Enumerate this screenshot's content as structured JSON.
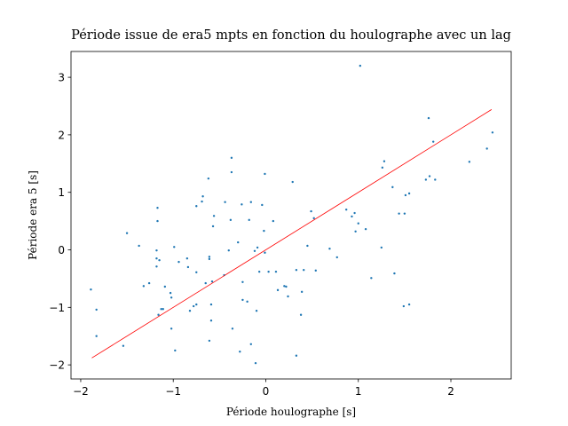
{
  "chart_data": {
    "type": "scatter",
    "title": "Période issue de era5 mpts en fonction du houlographe avec un lag",
    "xlabel": "Période houlographe [s]",
    "ylabel": "Période era 5 [s]",
    "xlim": [
      -2.105,
      2.652
    ],
    "ylim": [
      -2.245,
      3.449
    ],
    "xticks": [
      {
        "value": -2,
        "label": "−2"
      },
      {
        "value": -1,
        "label": "−1"
      },
      0,
      1,
      2
    ],
    "yticks": [
      {
        "value": -2,
        "label": "−2"
      },
      {
        "value": -1,
        "label": "−1"
      },
      0,
      1,
      2,
      3
    ],
    "grid": false,
    "series": [
      {
        "color": "#1f77b4",
        "x": [
          -1.89,
          -1.83,
          -1.83,
          -1.54,
          -1.5,
          -1.37,
          -1.32,
          -1.26,
          -1.18,
          -1.18,
          -1.18,
          -1.17,
          -1.17,
          -1.15,
          -1.16,
          -1.13,
          -1.11,
          -1.09,
          -1.03,
          -1.02,
          -1.02,
          -0.99,
          -0.98,
          -0.94,
          -0.85,
          -0.84,
          -0.82,
          -0.78,
          -0.75,
          -0.75,
          -0.75,
          -0.69,
          -0.68,
          -0.65,
          -0.62,
          -0.61,
          -0.61,
          -0.61,
          -0.59,
          -0.59,
          -0.57,
          -0.56,
          -0.58,
          -0.45,
          -0.44,
          -0.4,
          -0.38,
          -0.37,
          -0.37,
          -0.36,
          -0.3,
          -0.28,
          -0.26,
          -0.25,
          -0.25,
          -0.2,
          -0.18,
          -0.16,
          -0.16,
          -0.11,
          -0.1,
          -0.12,
          -0.09,
          -0.07,
          -0.04,
          -0.02,
          -0.01,
          -0.01,
          0.03,
          0.08,
          0.11,
          0.13,
          0.2,
          0.22,
          0.24,
          0.29,
          0.33,
          0.33,
          0.38,
          0.39,
          0.41,
          0.45,
          0.49,
          0.52,
          0.54,
          0.69,
          0.77,
          0.87,
          0.93,
          0.96,
          0.97,
          1.0,
          1.02,
          1.08,
          1.14,
          1.25,
          1.26,
          1.28,
          1.37,
          1.39,
          1.44,
          1.5,
          1.49,
          1.51,
          1.55,
          1.55,
          1.76,
          1.73,
          1.77,
          1.81,
          1.83,
          2.2,
          2.39,
          2.45
        ],
        "values": [
          -0.69,
          -1.04,
          -1.5,
          -1.67,
          0.29,
          0.07,
          -0.63,
          -0.58,
          -0.01,
          -0.15,
          -0.29,
          0.73,
          0.5,
          -0.18,
          -1.13,
          -1.03,
          -1.03,
          -0.64,
          -0.75,
          -0.83,
          -1.37,
          0.05,
          -1.75,
          -0.21,
          -0.15,
          -0.3,
          -1.06,
          -0.98,
          -0.39,
          -0.95,
          0.76,
          0.84,
          0.93,
          -0.58,
          1.24,
          -1.58,
          -0.12,
          -0.16,
          -0.95,
          -1.23,
          0.41,
          0.59,
          -0.55,
          -0.44,
          0.83,
          -0.01,
          0.52,
          1.6,
          1.35,
          -1.37,
          0.13,
          -1.77,
          0.79,
          -0.87,
          -0.56,
          -0.9,
          0.52,
          0.83,
          -1.64,
          -1.97,
          -1.06,
          -0.02,
          0.04,
          -0.38,
          0.78,
          0.33,
          1.32,
          -0.05,
          -0.38,
          0.5,
          -0.38,
          -0.7,
          -0.63,
          -0.64,
          -0.81,
          1.18,
          -0.35,
          -1.84,
          -1.13,
          -0.73,
          -0.35,
          0.07,
          0.67,
          0.55,
          -0.36,
          0.02,
          -0.13,
          0.7,
          0.58,
          0.64,
          0.32,
          0.46,
          3.2,
          0.36,
          -0.49,
          0.04,
          1.43,
          1.54,
          1.09,
          -0.41,
          0.63,
          0.63,
          -0.98,
          0.95,
          0.98,
          -0.95,
          2.29,
          1.22,
          1.28,
          1.88,
          1.22,
          1.53,
          1.76,
          2.04
        ]
      },
      {
        "type": "line",
        "color": "#ff0000",
        "x": [
          -1.88,
          2.44
        ],
        "values": [
          -1.88,
          2.44
        ]
      }
    ]
  }
}
